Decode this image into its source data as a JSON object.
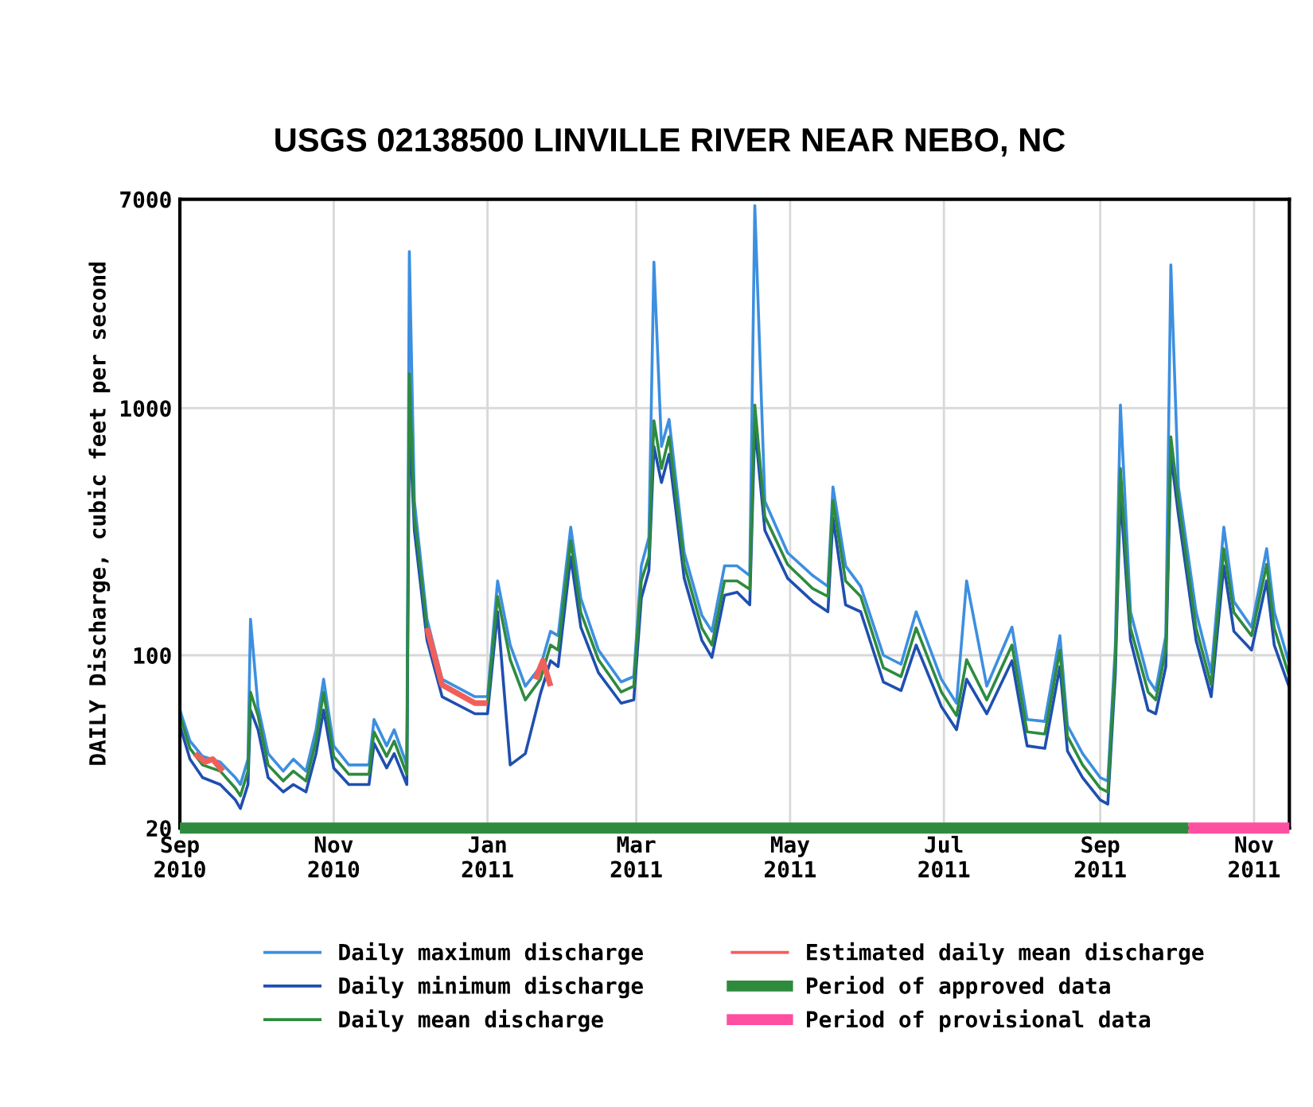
{
  "chart_data": {
    "type": "line",
    "title": "USGS 02138500 LINVILLE RIVER NEAR NEBO, NC",
    "ylabel": "DAILY Discharge, cubic feet per second",
    "log": "y",
    "ylim": [
      20,
      7000
    ],
    "yticks": [
      20,
      100,
      1000,
      7000
    ],
    "xlim": [
      "2010-09-01",
      "2011-11-15"
    ],
    "xticks": [
      {
        "value": "2010-09-01",
        "label": "Sep\n2010"
      },
      {
        "value": "2010-11-01",
        "label": "Nov\n2010"
      },
      {
        "value": "2011-01-01",
        "label": "Jan\n2011"
      },
      {
        "value": "2011-03-01",
        "label": "Mar\n2011"
      },
      {
        "value": "2011-05-01",
        "label": "May\n2011"
      },
      {
        "value": "2011-07-01",
        "label": "Jul\n2011"
      },
      {
        "value": "2011-09-01",
        "label": "Sep\n2011"
      },
      {
        "value": "2011-11-01",
        "label": "Nov\n2011"
      }
    ],
    "grid": true,
    "legend": "bottom",
    "line_style": "solid",
    "marker": "none",
    "x": [
      "2010-09-01",
      "2010-09-05",
      "2010-09-10",
      "2010-09-17",
      "2010-09-23",
      "2010-09-25",
      "2010-09-28",
      "2010-09-29",
      "2010-10-02",
      "2010-10-06",
      "2010-10-12",
      "2010-10-16",
      "2010-10-21",
      "2010-10-25",
      "2010-10-28",
      "2010-11-01",
      "2010-11-07",
      "2010-11-15",
      "2010-11-17",
      "2010-11-22",
      "2010-11-25",
      "2010-11-30",
      "2010-12-01",
      "2010-12-03",
      "2010-12-08",
      "2010-12-14",
      "2010-12-27",
      "2011-01-01",
      "2011-01-05",
      "2011-01-10",
      "2011-01-16",
      "2011-01-22",
      "2011-01-26",
      "2011-01-29",
      "2011-02-03",
      "2011-02-07",
      "2011-02-14",
      "2011-02-23",
      "2011-02-28",
      "2011-03-03",
      "2011-03-06",
      "2011-03-08",
      "2011-03-11",
      "2011-03-14",
      "2011-03-20",
      "2011-03-27",
      "2011-03-31",
      "2011-04-05",
      "2011-04-10",
      "2011-04-15",
      "2011-04-17",
      "2011-04-21",
      "2011-04-30",
      "2011-05-10",
      "2011-05-16",
      "2011-05-18",
      "2011-05-23",
      "2011-05-29",
      "2011-06-07",
      "2011-06-14",
      "2011-06-20",
      "2011-06-30",
      "2011-07-06",
      "2011-07-10",
      "2011-07-18",
      "2011-07-28",
      "2011-08-03",
      "2011-08-10",
      "2011-08-16",
      "2011-08-19",
      "2011-08-25",
      "2011-09-01",
      "2011-09-04",
      "2011-09-07",
      "2011-09-09",
      "2011-09-13",
      "2011-09-20",
      "2011-09-23",
      "2011-09-27",
      "2011-09-29",
      "2011-10-02",
      "2011-10-09",
      "2011-10-15",
      "2011-10-20",
      "2011-10-24",
      "2011-10-31",
      "2011-11-06",
      "2011-11-09",
      "2011-11-15"
    ],
    "series": [
      {
        "name": "Daily maximum discharge",
        "color": "#3d8fe0",
        "values": [
          60,
          45,
          39,
          37,
          32,
          30,
          38,
          140,
          62,
          40,
          34,
          38,
          34,
          50,
          80,
          43,
          36,
          36,
          55,
          43,
          50,
          36,
          4300,
          420,
          140,
          80,
          68,
          68,
          200,
          110,
          75,
          90,
          125,
          120,
          330,
          170,
          105,
          78,
          82,
          230,
          300,
          3900,
          700,
          900,
          260,
          145,
          125,
          230,
          230,
          210,
          6600,
          420,
          260,
          210,
          190,
          480,
          230,
          190,
          100,
          92,
          150,
          80,
          64,
          200,
          75,
          130,
          55,
          54,
          120,
          52,
          40,
          32,
          31,
          110,
          1030,
          150,
          80,
          72,
          120,
          3800,
          480,
          150,
          85,
          330,
          165,
          130,
          270,
          150,
          92
        ]
      },
      {
        "name": "Daily minimum discharge",
        "color": "#1f4fb0",
        "values": [
          52,
          38,
          32,
          30,
          26,
          24,
          30,
          60,
          50,
          32,
          28,
          30,
          28,
          40,
          60,
          35,
          30,
          30,
          44,
          35,
          40,
          30,
          900,
          320,
          115,
          68,
          58,
          58,
          150,
          36,
          40,
          70,
          95,
          90,
          250,
          130,
          85,
          64,
          66,
          170,
          220,
          700,
          500,
          650,
          205,
          115,
          98,
          175,
          180,
          160,
          850,
          320,
          205,
          165,
          150,
          360,
          160,
          150,
          78,
          72,
          110,
          62,
          50,
          80,
          58,
          95,
          43,
          42,
          90,
          41,
          32,
          26,
          25,
          85,
          450,
          115,
          60,
          58,
          90,
          650,
          370,
          115,
          68,
          230,
          125,
          105,
          200,
          110,
          74
        ]
      },
      {
        "name": "Daily mean discharge",
        "color": "#2e8b3e",
        "values": [
          57,
          42,
          36,
          34,
          29,
          27,
          34,
          71,
          57,
          36,
          31,
          34,
          31,
          45,
          71,
          39,
          33,
          33,
          49,
          39,
          45,
          33,
          1380,
          364,
          129,
          76,
          null,
          64,
          173,
          96,
          66,
          80,
          110,
          105,
          291,
          149,
          96,
          71,
          75,
          200,
          250,
          890,
          570,
          765,
          233,
          129,
          110,
          200,
          200,
          185,
          1030,
          364,
          233,
          186,
          173,
          422,
          200,
          173,
          89,
          82,
          129,
          71,
          57,
          96,
          66,
          110,
          49,
          48,
          105,
          47,
          36,
          29,
          28,
          96,
          570,
          129,
          71,
          66,
          105,
          765,
          422,
          129,
          76,
          270,
          149,
          120,
          233,
          129,
          82
        ]
      },
      {
        "name": "Estimated daily mean discharge",
        "color": "#f0605a",
        "x": [
          "2010-12-08",
          "2010-12-14",
          "2010-12-27",
          "2011-01-01"
        ],
        "values": [
          129,
          76,
          64,
          64
        ]
      },
      {
        "color": "#f0605a",
        "x": [
          "2010-09-07",
          "2010-09-11",
          "2010-09-14",
          "2010-09-18"
        ],
        "values": [
          40,
          37,
          38,
          34
        ]
      },
      {
        "color": "#f0605a",
        "x": [
          "2011-01-20",
          "2011-01-23",
          "2011-01-26"
        ],
        "values": [
          80,
          95,
          75
        ]
      },
      {
        "name": "Period of approved data",
        "color": "#2e8b3e",
        "x": [
          "2010-09-01",
          "2011-10-06"
        ],
        "values": [
          20,
          20
        ]
      },
      {
        "name": "Period of provisional data",
        "color": "#ff4fa0",
        "x": [
          "2011-10-06",
          "2011-11-15"
        ],
        "values": [
          20,
          20
        ]
      }
    ]
  }
}
